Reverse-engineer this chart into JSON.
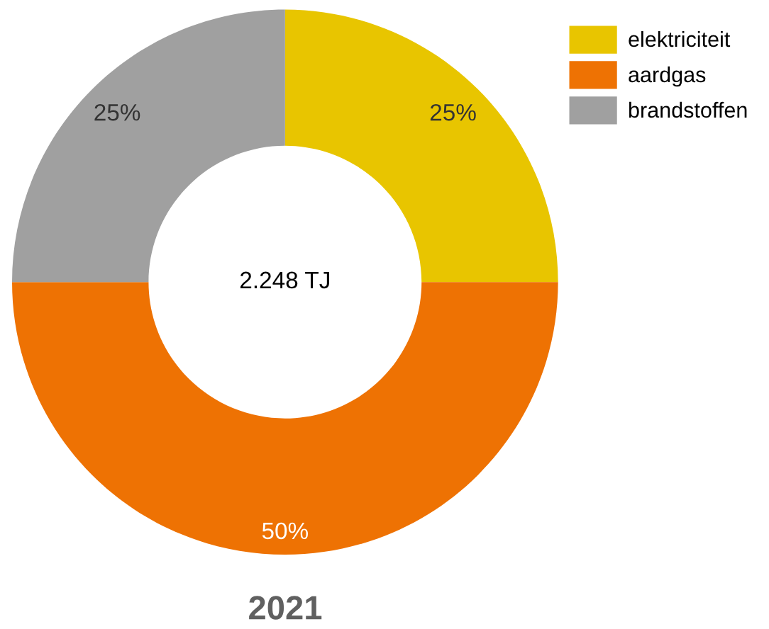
{
  "chart_data": {
    "type": "donut",
    "title": "2021",
    "categories": [
      "elektriciteit",
      "aardgas",
      "brandstoffen"
    ],
    "values": [
      25,
      50,
      25
    ],
    "colors": [
      "#e8c500",
      "#ee7203",
      "#a0a0a0"
    ],
    "value_labels": [
      "25%",
      "50%",
      "25%"
    ],
    "annotations": [
      "2.248 TJ"
    ],
    "legend": "top right"
  }
}
